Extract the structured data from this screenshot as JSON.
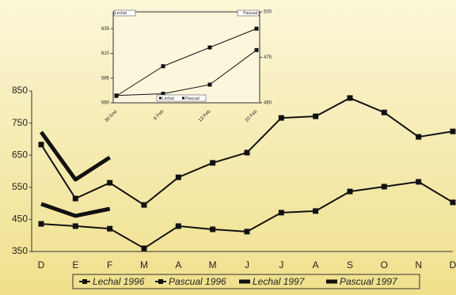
{
  "chart_data": [
    {
      "type": "line",
      "categories": [
        "D",
        "E",
        "F",
        "M",
        "A",
        "M",
        "J",
        "J",
        "A",
        "S",
        "O",
        "N",
        "D"
      ],
      "ylim": [
        350,
        850
      ],
      "yticks": [
        350,
        450,
        550,
        650,
        750,
        850
      ],
      "series": [
        {
          "name": "Lechal 1996",
          "color": "#111111",
          "line_width": 2,
          "marker": "square",
          "values": [
            683,
            515,
            564,
            495,
            581,
            626,
            658,
            766,
            771,
            828,
            783,
            707,
            724
          ]
        },
        {
          "name": "Pascual 1996",
          "color": "#111111",
          "line_width": 2,
          "marker": "square",
          "values": [
            436,
            429,
            421,
            360,
            429,
            419,
            412,
            471,
            476,
            537,
            552,
            567,
            503
          ]
        },
        {
          "name": "Lechal 1997",
          "color": "#111111",
          "line_width": 5,
          "values": [
            722,
            574,
            643,
            null,
            null,
            null,
            null,
            null,
            null,
            null,
            null,
            null,
            null
          ]
        },
        {
          "name": "Pascual 1997",
          "color": "#111111",
          "line_width": 5,
          "values": [
            498,
            461,
            483,
            null,
            null,
            null,
            null,
            null,
            null,
            null,
            null,
            null,
            null
          ]
        }
      ]
    },
    {
      "type": "line",
      "categories": [
        "30 Ene",
        "6 Feb",
        "13 Feb",
        "20 Feb"
      ],
      "ylim": [
        560,
        652
      ],
      "yticks": [
        560,
        585,
        610,
        635
      ],
      "y2lim": [
        450,
        500
      ],
      "y2ticks": [
        450,
        475,
        500
      ],
      "axis_titles": [
        "Lechal",
        "Pascual"
      ],
      "series": [
        {
          "name": "Lechal",
          "color": "#111111",
          "line_width": 1,
          "marker": "square",
          "values": [
            567,
            597,
            616,
            635
          ]
        },
        {
          "name": "Pascual",
          "color": "#111111",
          "line_width": 1,
          "marker": "square",
          "axis": "y2",
          "values": [
            454,
            455,
            460,
            479
          ]
        }
      ]
    }
  ]
}
